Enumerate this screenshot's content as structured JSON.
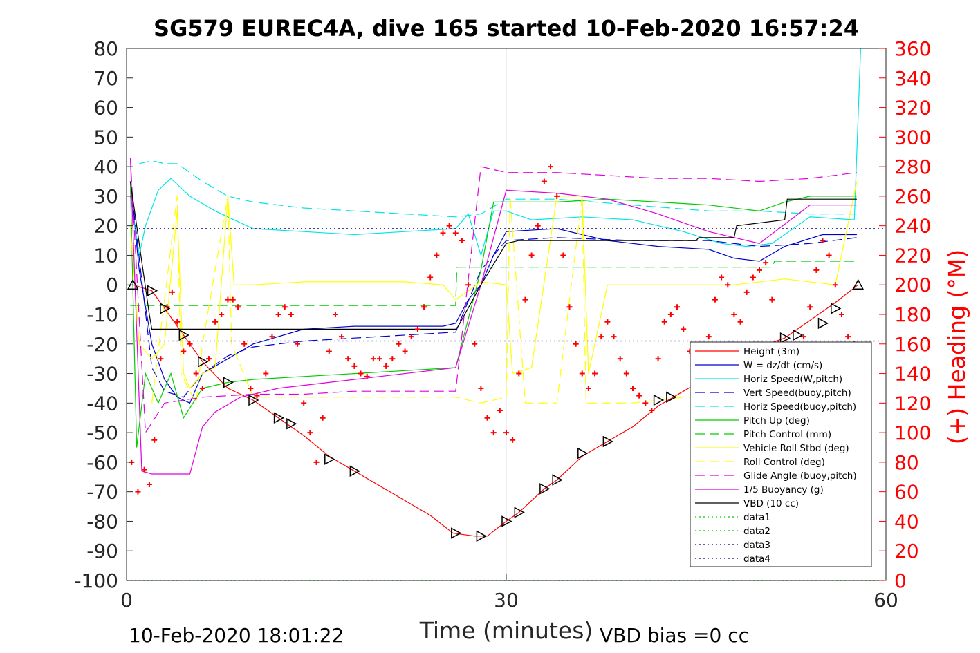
{
  "chart_data": {
    "type": "line",
    "title": "SG579 EUREC4A, dive 165 started 10-Feb-2020 16:57:24",
    "xlabel": "Time (minutes)",
    "ylabel": "",
    "y2label": "(+) Heading (°M)",
    "xlim": [
      0,
      60
    ],
    "ylim": [
      -100,
      80
    ],
    "y2lim": [
      0,
      360
    ],
    "xticks": [
      "0",
      "30",
      "60"
    ],
    "yticks": [
      "80",
      "70",
      "60",
      "50",
      "40",
      "30",
      "20",
      "10",
      "0",
      "-10",
      "-20",
      "-30",
      "-40",
      "-50",
      "-60",
      "-70",
      "-80",
      "-90",
      "-100"
    ],
    "y2ticks": [
      "360",
      "340",
      "320",
      "300",
      "280",
      "260",
      "240",
      "220",
      "200",
      "180",
      "160",
      "140",
      "120",
      "100",
      "80",
      "60",
      "40",
      "20",
      "0"
    ],
    "grid": "x at 30",
    "legend_position": "bottom-right",
    "footer_left": "10-Feb-2020 18:01:22",
    "footer_right": "VBD bias =0 cc",
    "colors": {
      "red": "#ff0000",
      "blue": "#0000cd",
      "cyan": "#00e5e5",
      "green": "#00cc00",
      "yellow": "#ffff00",
      "magenta": "#e000e0",
      "black": "#000000"
    },
    "series": [
      {
        "name": "Height (3m)",
        "color": "#ff0000",
        "style": "solid",
        "x": [
          0.5,
          2,
          3,
          4.5,
          6,
          8,
          10,
          12,
          14,
          16,
          18,
          20,
          22,
          24,
          25.8,
          27.5,
          28.5,
          30,
          31,
          33,
          34,
          36,
          38,
          40,
          42,
          44,
          46,
          48,
          50,
          52,
          54,
          56,
          57.8
        ],
        "y": [
          0,
          -2,
          -8,
          -17,
          -26,
          -35,
          -39,
          -45,
          -51,
          -58,
          -63,
          -68,
          -73,
          -78,
          -84,
          -85,
          -85,
          -80,
          -77,
          -69,
          -66,
          -58,
          -53,
          -48,
          -41,
          -36,
          -31,
          -27,
          -21,
          -18,
          -12,
          -6,
          0
        ]
      },
      {
        "name": "W = dz/dt (cm/s)",
        "color": "#0000cd",
        "style": "solid",
        "x": [
          0.3,
          1,
          2,
          3,
          4,
          5,
          6,
          8,
          10,
          14,
          18,
          22,
          25,
          26,
          27,
          28,
          29,
          30,
          34,
          38,
          42,
          46,
          48,
          50,
          52,
          55,
          57.7
        ],
        "y": [
          35,
          5,
          -20,
          -32,
          -38,
          -40,
          -30,
          -25,
          -20,
          -15,
          -14,
          -14,
          -14,
          -13,
          -5,
          0,
          10,
          18,
          19,
          15,
          13,
          12,
          9,
          8,
          13,
          17,
          17
        ]
      },
      {
        "name": "Horiz Speed(W,pitch)",
        "color": "#00e5e5",
        "style": "solid",
        "x": [
          0.3,
          1,
          1.5,
          2.5,
          3.5,
          5,
          7,
          10,
          14,
          18,
          22,
          26,
          27,
          28,
          29,
          30,
          32,
          36,
          40,
          44,
          47,
          49,
          51,
          54,
          57.5,
          58
        ],
        "y": [
          30,
          10,
          20,
          32,
          36,
          30,
          25,
          19,
          18,
          17,
          18,
          19,
          24,
          10,
          25,
          25,
          22,
          23,
          22,
          18,
          14,
          13,
          14,
          23,
          22,
          80
        ]
      },
      {
        "name": "Vert Speed(buoy,pitch)",
        "color": "#0000cd",
        "style": "dashed",
        "x": [
          0.3,
          2,
          3,
          4.5,
          6,
          8,
          10,
          14,
          18,
          22,
          26,
          28,
          30,
          34,
          40,
          46,
          50,
          54,
          57.7
        ],
        "y": [
          35,
          -28,
          -36,
          -38,
          -30,
          -24,
          -21,
          -19,
          -18,
          -17,
          -16,
          5,
          15,
          16,
          15,
          15,
          13,
          14,
          16
        ]
      },
      {
        "name": "Horiz Speed(buoy,pitch)",
        "color": "#00e5e5",
        "style": "dashed",
        "x": [
          1,
          2,
          3,
          4,
          5,
          6,
          8,
          10,
          14,
          18,
          22,
          26,
          28,
          30,
          34,
          40,
          46,
          50,
          54,
          57.7
        ],
        "y": [
          41,
          42,
          41,
          41,
          38,
          35,
          30,
          28,
          26,
          25,
          24,
          23,
          24,
          29,
          29,
          27,
          25,
          25,
          24,
          24
        ]
      },
      {
        "name": "Pitch Up (deg)",
        "color": "#00cc00",
        "style": "solid",
        "x": [
          0.3,
          0.8,
          1.5,
          2.5,
          3.5,
          4.5,
          6,
          8,
          10,
          14,
          18,
          22,
          26,
          28,
          29,
          30,
          34,
          38,
          42,
          46,
          50,
          52,
          54,
          57.7
        ],
        "y": [
          35,
          -55,
          -30,
          -40,
          -30,
          -45,
          -35,
          -33,
          -32,
          -31,
          -30,
          -29,
          -28,
          5,
          28,
          28,
          28,
          29,
          28,
          27,
          25,
          28,
          30,
          30
        ]
      },
      {
        "name": "Pitch Control (mm)",
        "color": "#00cc00",
        "style": "dashed",
        "x": [
          0.3,
          1,
          2,
          10,
          26,
          26.1,
          30,
          40,
          51,
          51.2,
          55,
          57.7
        ],
        "y": [
          -7,
          -7,
          -7,
          -7,
          -7,
          6,
          6,
          6,
          6,
          8,
          8,
          8
        ]
      },
      {
        "name": "Vehicle Roll Stbd (deg)",
        "color": "#ffff00",
        "style": "solid",
        "x": [
          0.3,
          1,
          2,
          3,
          4,
          4.5,
          5,
          6,
          7,
          8,
          8.5,
          9,
          10,
          14,
          18,
          22,
          25,
          26,
          28,
          30,
          30.5,
          32,
          34,
          36,
          36.5,
          38,
          40,
          44,
          48,
          52,
          56,
          57.7
        ],
        "y": [
          20,
          -20,
          -25,
          -20,
          25,
          -30,
          -35,
          -30,
          -28,
          30,
          0,
          0,
          0,
          1,
          1,
          1,
          0,
          -5,
          1,
          0,
          -30,
          -28,
          30,
          30,
          -30,
          0,
          0,
          0,
          0,
          2,
          0,
          35
        ]
      },
      {
        "name": "Roll Control (deg)",
        "color": "#ffff00",
        "style": "dashed",
        "x": [
          2,
          4,
          4.3,
          5.5,
          6,
          8,
          8.3,
          10,
          14,
          18,
          22,
          26,
          28,
          30,
          30.3,
          31.5,
          34,
          36,
          36.3,
          38,
          40,
          44,
          48,
          52,
          56
        ],
        "y": [
          -40,
          30,
          -30,
          -40,
          -20,
          30,
          -20,
          -38,
          -38,
          -38,
          -38,
          -38,
          -40,
          -38,
          30,
          -40,
          -40,
          30,
          -40,
          -40,
          -40,
          -38,
          -38,
          -40,
          -40
        ]
      },
      {
        "name": "Glide Angle (buoy,pitch)",
        "color": "#e000e0",
        "style": "dashed",
        "x": [
          0.3,
          1.5,
          3,
          6,
          10,
          14,
          18,
          22,
          26,
          28,
          30,
          34,
          38,
          42,
          46,
          50,
          54,
          57.7
        ],
        "y": [
          43,
          -50,
          -40,
          -38,
          -37,
          -37,
          -36,
          -36,
          -36,
          40,
          38,
          38,
          37,
          36,
          36,
          35,
          36,
          38
        ]
      },
      {
        "name": "1/5 Buoyancy (g)",
        "color": "#e000e0",
        "style": "solid",
        "x": [
          0.3,
          1.2,
          2,
          5,
          6,
          7,
          9,
          12,
          16,
          20,
          24,
          26,
          28,
          30,
          34,
          38,
          42,
          46,
          50,
          54,
          57.7
        ],
        "y": [
          43,
          -63,
          -64,
          -64,
          -48,
          -43,
          -38,
          -35,
          -33,
          -31,
          -29,
          -28,
          0,
          32,
          31,
          29,
          24,
          18,
          14,
          27,
          27
        ]
      },
      {
        "name": "VBD (10 cc)",
        "color": "#000000",
        "style": "solid",
        "x": [
          0.3,
          1.8,
          2,
          26,
          26.2,
          28,
          30,
          31,
          45,
          45.2,
          48,
          48.2,
          52,
          52.2,
          57.7
        ],
        "y": [
          35,
          -10,
          -15,
          -15,
          -14,
          0,
          14,
          15,
          15,
          16,
          16,
          20,
          22,
          29,
          29
        ]
      },
      {
        "name": "data1",
        "color": "#00cc00",
        "style": "dotted",
        "x": [
          0,
          60
        ],
        "y": [
          -100,
          -100
        ]
      },
      {
        "name": "data2",
        "color": "#00cc00",
        "style": "dotted",
        "x": [
          0,
          60
        ],
        "y": [
          -100,
          -100
        ]
      },
      {
        "name": "data3",
        "color": "#000080",
        "style": "dotted",
        "x": [
          0,
          60
        ],
        "y": [
          19,
          19
        ]
      },
      {
        "name": "data4",
        "color": "#000080",
        "style": "dotted",
        "x": [
          0,
          60
        ],
        "y": [
          -19,
          -19
        ]
      }
    ],
    "heading": {
      "axis": "right",
      "marker": "+",
      "color": "#ff0000",
      "x": [
        0.4,
        0.9,
        1.4,
        1.8,
        2.2,
        2.7,
        3.2,
        3.6,
        4,
        4.5,
        5,
        5.5,
        6,
        6.5,
        7,
        7.5,
        8,
        8.4,
        8.8,
        9.3,
        9.8,
        10.3,
        11,
        11.5,
        12,
        12.5,
        13,
        13.5,
        14,
        14.5,
        15,
        15.5,
        16,
        16.5,
        17,
        17.5,
        18,
        18.5,
        19,
        19.5,
        20,
        20.5,
        21,
        21.5,
        22,
        22.5,
        23,
        23.5,
        24,
        24.5,
        25,
        25.5,
        26,
        26.5,
        27,
        27.5,
        28,
        28.5,
        29,
        29.5,
        30,
        30.5,
        31,
        31.5,
        32,
        32.5,
        33,
        33.5,
        34,
        34.5,
        35,
        35.5,
        36,
        36.5,
        37,
        37.5,
        38,
        38.5,
        39,
        39.5,
        40,
        40.5,
        41,
        41.5,
        42,
        42.5,
        43,
        43.5,
        44,
        44.5,
        45,
        45.5,
        46,
        46.5,
        47,
        47.5,
        48,
        48.5,
        49,
        49.5,
        50,
        50.5,
        51,
        51.5,
        52,
        52.5,
        53,
        53.5,
        54,
        54.5,
        55,
        55.5,
        56,
        56.5,
        57,
        57.5
      ],
      "y": [
        80,
        60,
        75,
        65,
        95,
        150,
        185,
        195,
        175,
        155,
        160,
        140,
        130,
        150,
        175,
        180,
        190,
        190,
        185,
        160,
        130,
        125,
        140,
        165,
        180,
        185,
        180,
        160,
        120,
        100,
        80,
        110,
        155,
        180,
        165,
        150,
        145,
        140,
        138,
        150,
        150,
        145,
        150,
        160,
        155,
        165,
        170,
        185,
        205,
        220,
        235,
        240,
        235,
        230,
        200,
        160,
        130,
        110,
        100,
        115,
        100,
        95,
        140,
        190,
        220,
        240,
        270,
        280,
        260,
        220,
        185,
        160,
        140,
        130,
        140,
        165,
        175,
        165,
        150,
        140,
        130,
        125,
        120,
        115,
        150,
        175,
        180,
        185,
        170,
        155,
        140,
        150,
        165,
        190,
        205,
        200,
        180,
        175,
        195,
        205,
        210,
        215,
        190,
        160,
        150,
        150,
        155,
        165,
        185,
        210,
        230,
        220,
        200,
        180,
        165,
        160
      ]
    },
    "depth_markers": {
      "marker": "triangle",
      "color": "#000000",
      "x": [
        0.5,
        2,
        3,
        4.5,
        6,
        8,
        10,
        12,
        13,
        16,
        18,
        26,
        28,
        30,
        31,
        33,
        34,
        36,
        38,
        42,
        43,
        52,
        53,
        55,
        56,
        57.8
      ],
      "y": [
        0,
        -2,
        -8,
        -17,
        -26,
        -33,
        -39,
        -45,
        -47,
        -59,
        -63,
        -84,
        -85,
        -80,
        -77,
        -69,
        -66,
        -57,
        -53,
        -39,
        -38,
        -18,
        -17,
        -13,
        -8,
        0
      ]
    }
  }
}
